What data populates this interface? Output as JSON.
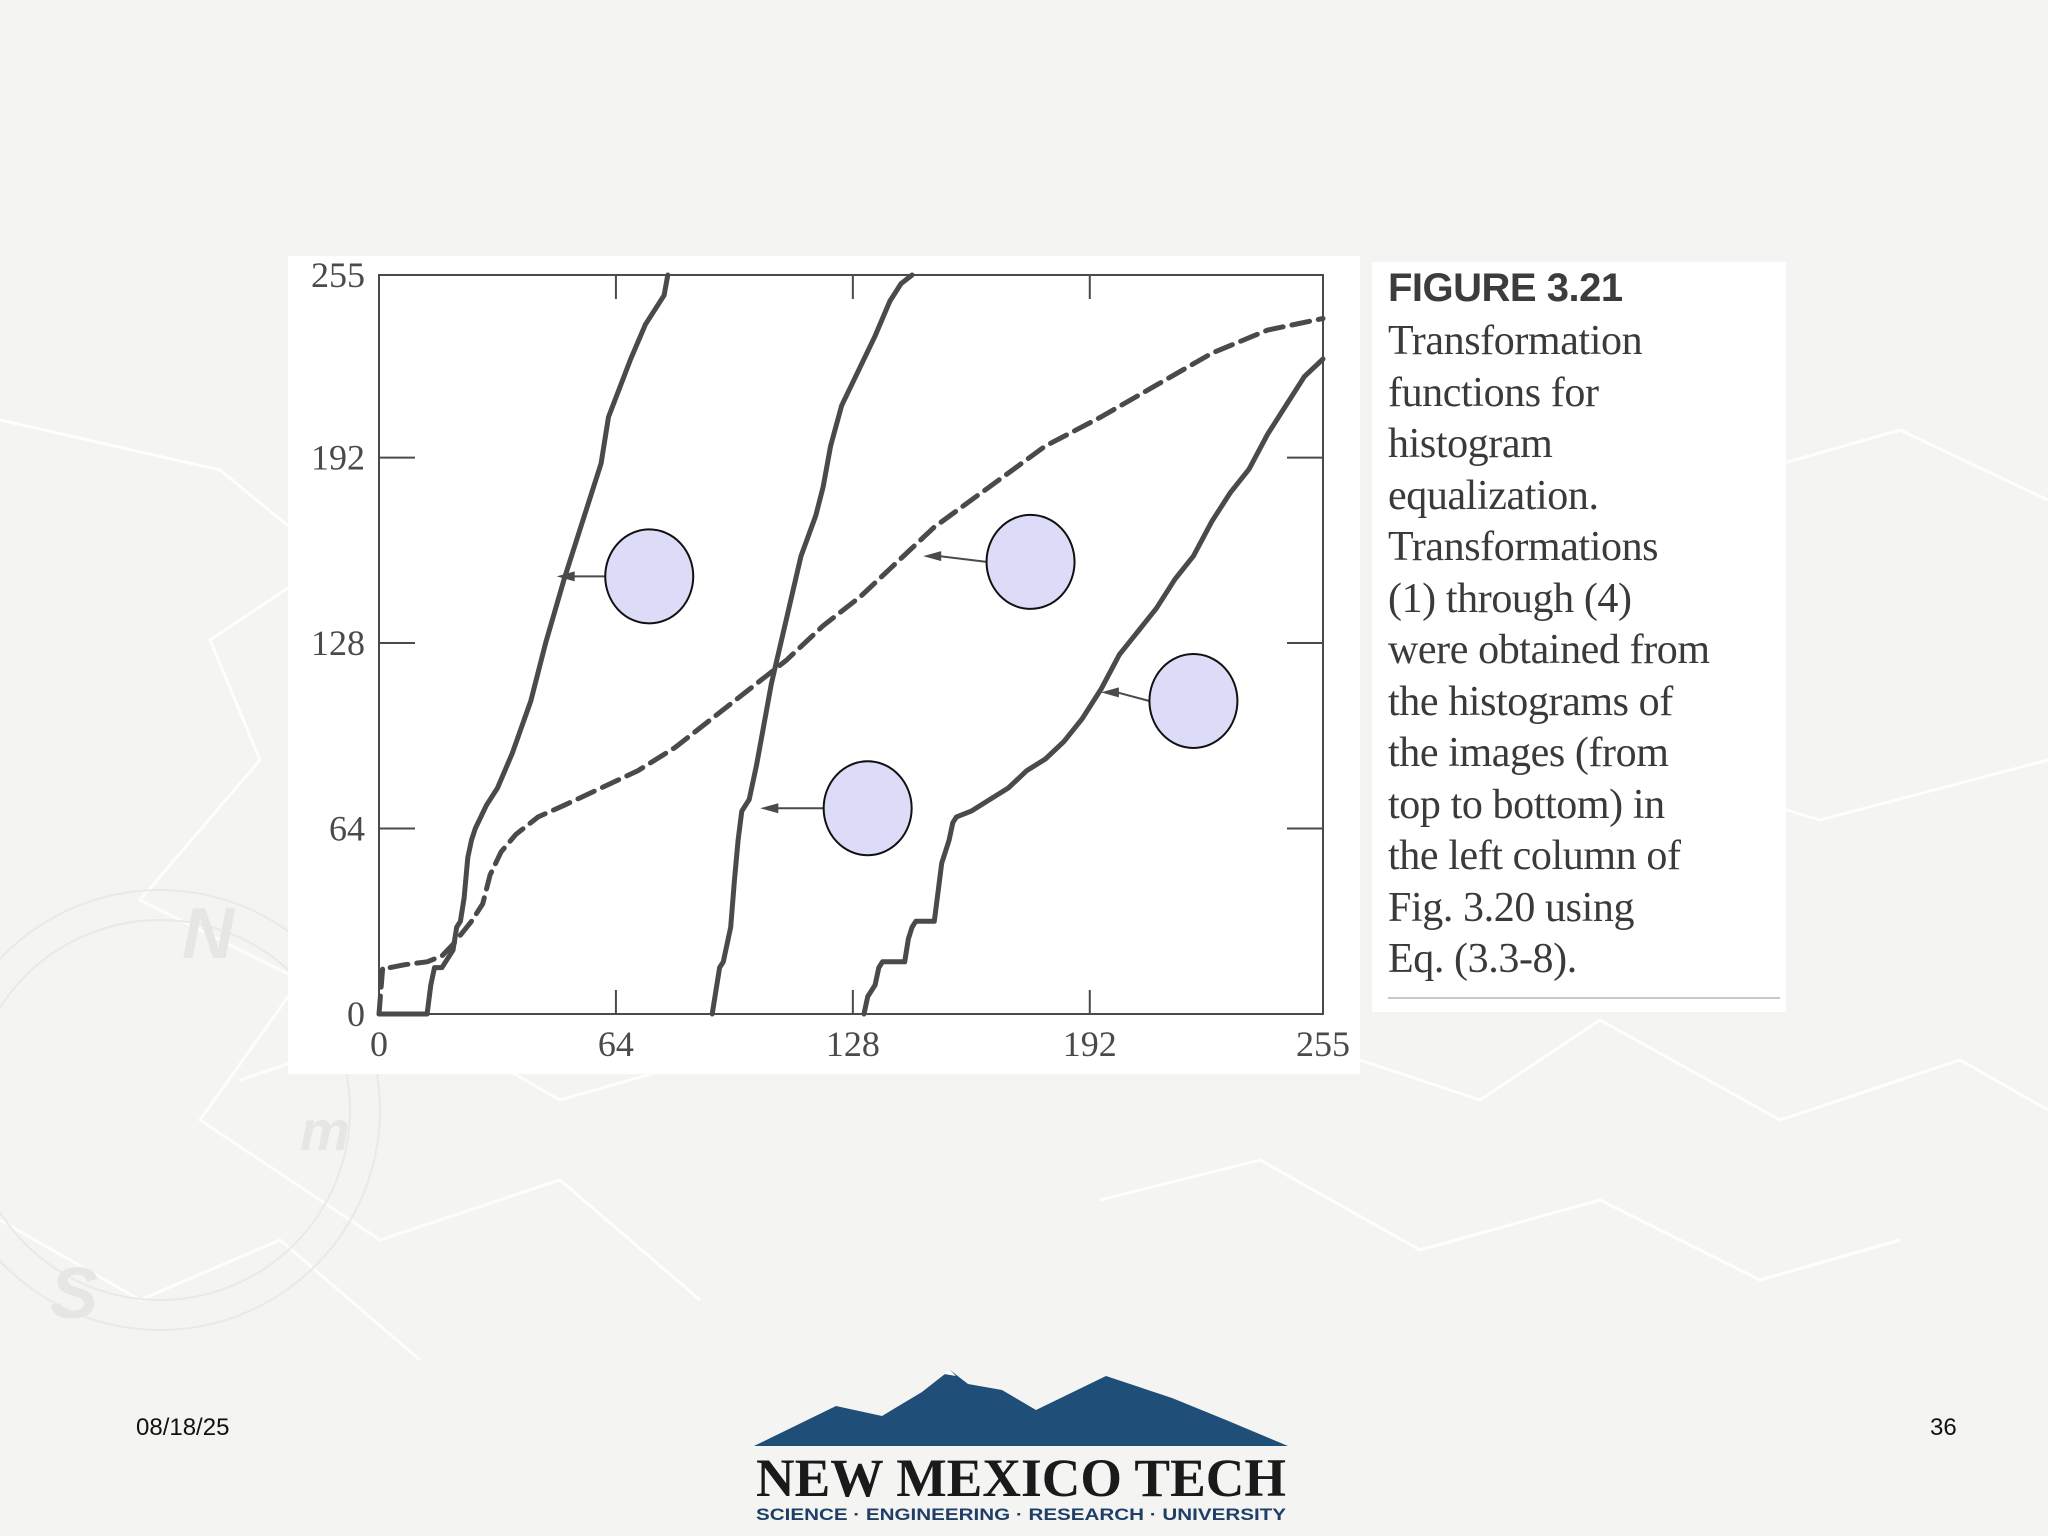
{
  "slide": {
    "date": "08/18/25",
    "page_number": "36"
  },
  "caption": {
    "title": "FIGURE 3.21",
    "text": "Transformation\nfunctions for\nhistogram\nequalization.\nTransformations\n(1) through (4)\nwere obtained from\nthe histograms of\nthe images (from\ntop to bottom) in\nthe left column of\nFig. 3.20 using\nEq. (3.3-8)."
  },
  "logo": {
    "name": "NEW MEXICO TECH",
    "tagline": "SCIENCE · ENGINEERING · RESEARCH · UNIVERSITY",
    "colors": {
      "mountain": "#1f4e79",
      "text": "#1a1a1a",
      "tagline": "#1f3f66"
    }
  },
  "chart_data": {
    "type": "line",
    "title": "",
    "xlabel": "",
    "ylabel": "",
    "xlim": [
      0,
      255
    ],
    "ylim": [
      0,
      255
    ],
    "x_ticks": [
      0,
      64,
      128,
      192,
      255
    ],
    "y_ticks": [
      0,
      64,
      128,
      192,
      255
    ],
    "grid": false,
    "legend": "none",
    "line_color": "#4a4a48",
    "marker_color": "#dcdcf8",
    "series": [
      {
        "style": "solid",
        "x": [
          0,
          1,
          13,
          14,
          15,
          17,
          18,
          20,
          21,
          22,
          23,
          24,
          25,
          26,
          29,
          32,
          36,
          41,
          45,
          50,
          55,
          60,
          62,
          68,
          72,
          77,
          78
        ],
        "y": [
          0,
          0,
          0,
          10,
          16,
          16,
          18,
          22,
          30,
          32,
          40,
          54,
          60,
          64,
          72,
          78,
          90,
          108,
          128,
          150,
          170,
          190,
          206,
          226,
          238,
          248,
          255
        ]
      },
      {
        "style": "solid",
        "x": [
          90,
          91,
          92,
          93,
          95,
          96,
          97,
          98,
          100,
          102,
          104,
          106,
          110,
          114,
          118,
          120,
          122,
          125,
          128,
          134,
          138,
          141,
          144
        ],
        "y": [
          0,
          8,
          16,
          18,
          30,
          46,
          60,
          70,
          74,
          86,
          100,
          114,
          136,
          158,
          172,
          182,
          196,
          210,
          218,
          234,
          246,
          252,
          255
        ]
      },
      {
        "style": "dashed",
        "x": [
          0,
          1,
          3,
          7,
          13,
          17,
          20,
          25,
          28,
          30,
          33,
          37,
          43,
          50,
          60,
          70,
          80,
          90,
          100,
          110,
          120,
          130,
          140,
          150,
          165,
          180,
          195,
          210,
          225,
          240,
          255
        ],
        "y": [
          0,
          16,
          16,
          17,
          18,
          20,
          24,
          32,
          38,
          48,
          56,
          62,
          68,
          72,
          78,
          84,
          92,
          102,
          112,
          122,
          134,
          144,
          156,
          168,
          182,
          196,
          206,
          217,
          228,
          236,
          240
        ]
      },
      {
        "style": "solid",
        "x": [
          131,
          132,
          133,
          134,
          135,
          136,
          142,
          143,
          144,
          145,
          146,
          150,
          151,
          152,
          153,
          154,
          155,
          156,
          160,
          165,
          170,
          175,
          180,
          185,
          190,
          195,
          200,
          205,
          210,
          215,
          220,
          225,
          230,
          235,
          240,
          245,
          250,
          255
        ],
        "y": [
          0,
          6,
          8,
          10,
          16,
          18,
          18,
          26,
          30,
          32,
          32,
          32,
          42,
          52,
          56,
          60,
          66,
          68,
          70,
          74,
          78,
          84,
          88,
          94,
          102,
          112,
          124,
          132,
          140,
          150,
          158,
          170,
          180,
          188,
          200,
          210,
          220,
          226
        ]
      }
    ],
    "markers": [
      {
        "x": 73,
        "y": 151,
        "arrow_to_x": 48,
        "arrow_to_y": 151
      },
      {
        "x": 176,
        "y": 156,
        "arrow_to_x": 147,
        "arrow_to_y": 158
      },
      {
        "x": 132,
        "y": 71,
        "arrow_to_x": 103,
        "arrow_to_y": 71
      },
      {
        "x": 220,
        "y": 108,
        "arrow_to_x": 195,
        "arrow_to_y": 111
      }
    ]
  }
}
